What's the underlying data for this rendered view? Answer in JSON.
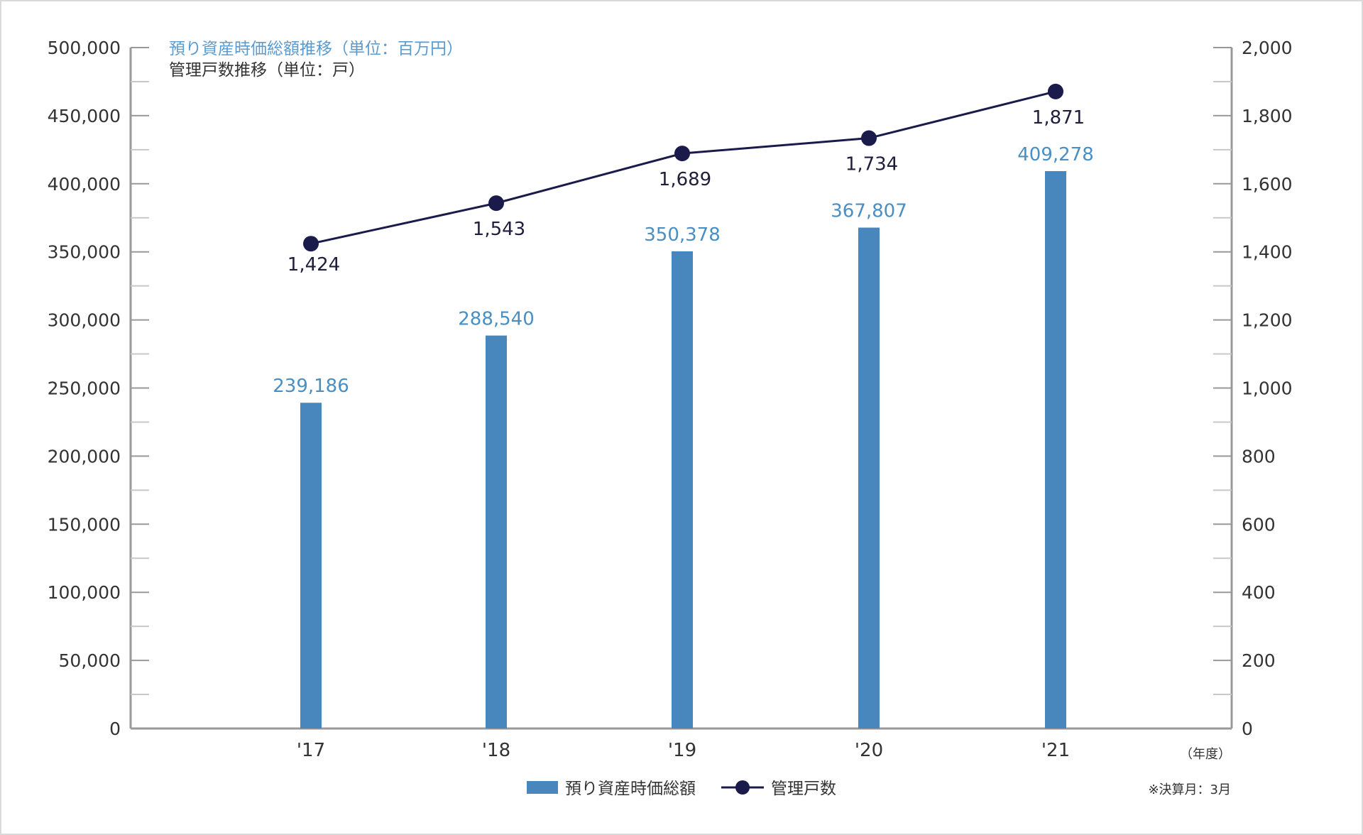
{
  "chart_data": {
    "type": "bar",
    "title_lines": [
      "預り資産時価総額推移（単位：百万円）",
      "管理戸数推移（単位：戸）"
    ],
    "categories": [
      "'17",
      "'18",
      "'19",
      "'20",
      "'21"
    ],
    "series": [
      {
        "name": "預り資産時価総額",
        "type": "bar",
        "axis": "left",
        "values": [
          239186,
          288540,
          350378,
          367807,
          409278
        ],
        "labels": [
          "239,186",
          "288,540",
          "350,378",
          "367,807",
          "409,278"
        ],
        "color": "#4787bd"
      },
      {
        "name": "管理戸数",
        "type": "line",
        "axis": "right",
        "values": [
          1424,
          1543,
          1689,
          1734,
          1871
        ],
        "labels": [
          "1,424",
          "1,543",
          "1,689",
          "1,734",
          "1,871"
        ],
        "color": "#1b1b4b"
      }
    ],
    "y_left": {
      "ylim": [
        0,
        500000
      ],
      "ticks": [
        0,
        50000,
        100000,
        150000,
        200000,
        250000,
        300000,
        350000,
        400000,
        450000,
        500000
      ],
      "tick_labels": [
        "0",
        "50,000",
        "100,000",
        "150,000",
        "200,000",
        "250,000",
        "300,000",
        "350,000",
        "400,000",
        "450,000",
        "500,000"
      ]
    },
    "y_right": {
      "ylim": [
        0,
        2000
      ],
      "ticks": [
        0,
        200,
        400,
        600,
        800,
        1000,
        1200,
        1400,
        1600,
        1800,
        2000
      ],
      "tick_labels": [
        "0",
        "200",
        "400",
        "600",
        "800",
        "1,000",
        "1,200",
        "1,400",
        "1,600",
        "1,800",
        "2,000"
      ]
    },
    "xlabel_unit": "（年度）",
    "footnote": "※決算月：3月",
    "legend": {
      "placement": "bottom-center",
      "items": [
        "預り資産時価総額",
        "管理戸数"
      ]
    },
    "grid": false
  }
}
